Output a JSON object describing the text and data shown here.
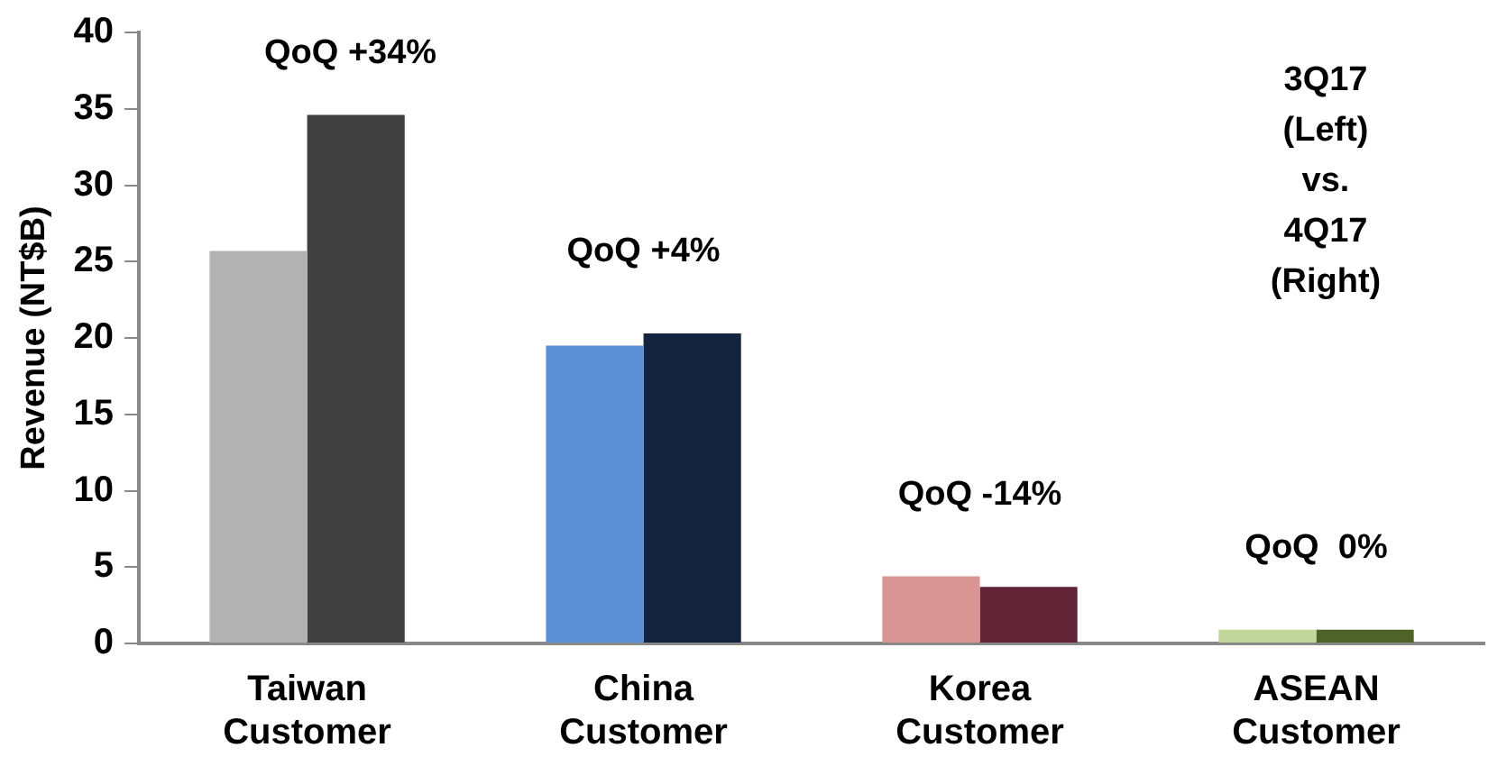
{
  "chart_data": {
    "type": "bar",
    "ylabel": "Revenue (NT$B)",
    "categories": [
      "Taiwan Customer",
      "China Customer",
      "Korea Customer",
      "ASEAN Customer"
    ],
    "series": [
      {
        "colors": [
          "#b2b2b2",
          "#5b8fd6",
          "#d99594",
          "#c3d69b"
        ],
        "values": [
          25.7,
          19.5,
          4.4,
          0.9
        ]
      },
      {
        "colors": [
          "#404040",
          "#14243f",
          "#632337",
          "#4f6228"
        ],
        "values": [
          34.6,
          20.3,
          3.7,
          0.9
        ]
      }
    ],
    "ylim": [
      0,
      40
    ],
    "yticks": [
      0,
      5,
      10,
      15,
      20,
      25,
      30,
      35,
      40
    ],
    "grid": false,
    "legend": false,
    "annotations": [
      "QoQ +34%",
      "QoQ +4%",
      "QoQ -14%",
      "QoQ  0%",
      "3Q17\n(Left)\nvs.\n4Q17\n(Right)"
    ]
  }
}
